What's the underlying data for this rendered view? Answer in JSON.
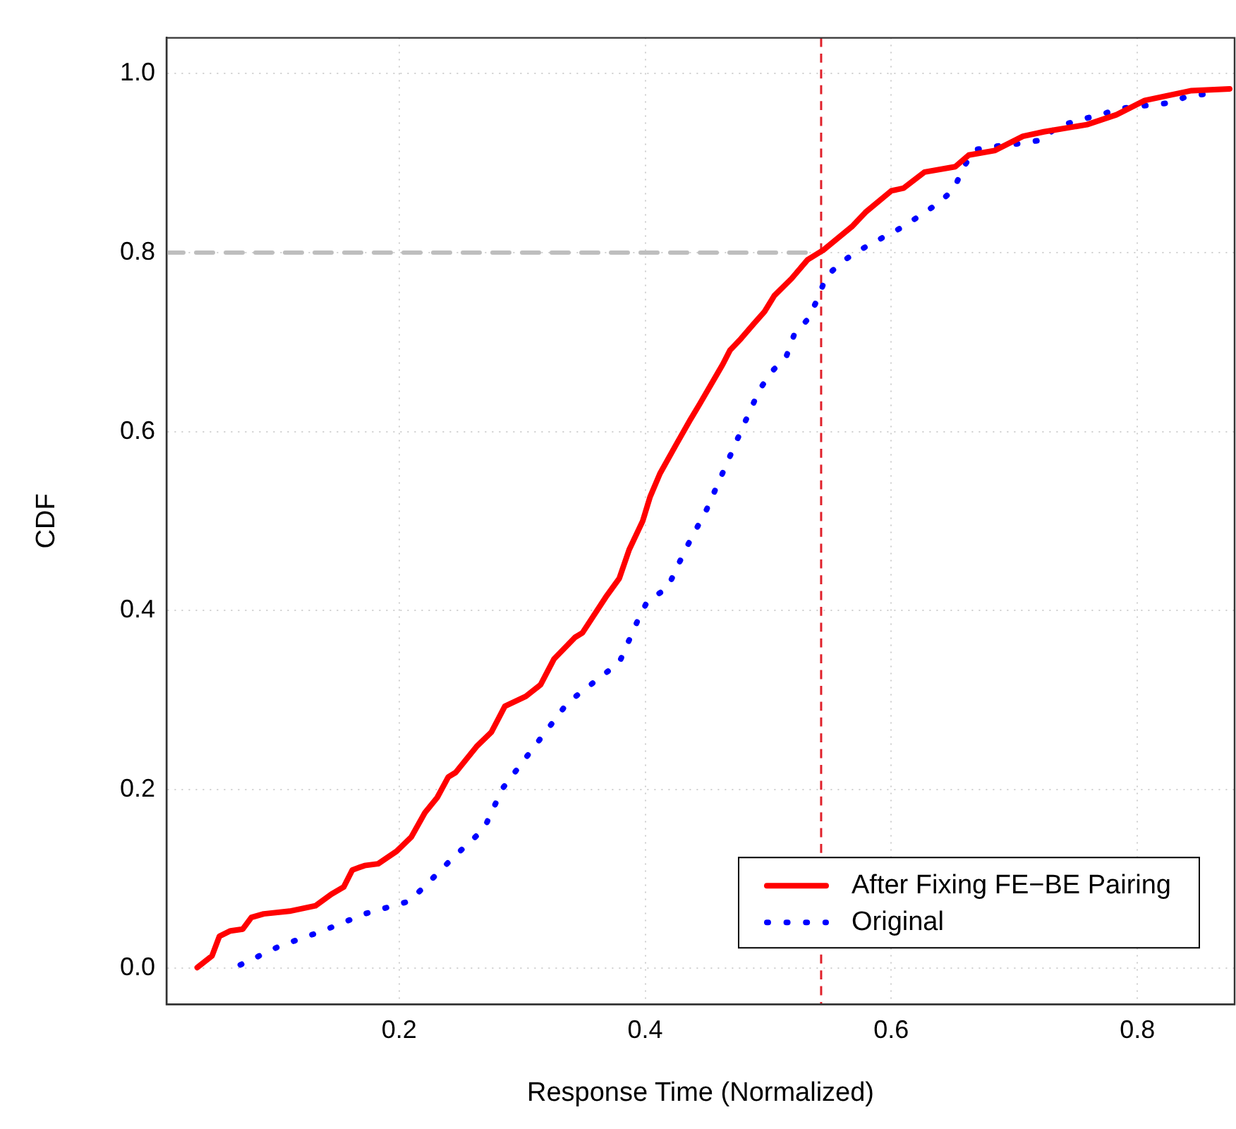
{
  "chart_data": {
    "type": "line",
    "xlabel": "Response Time (Normalized)",
    "ylabel": "CDF",
    "xlim": [
      0.011,
      0.879
    ],
    "ylim": [
      -0.04,
      1.04
    ],
    "xticks": [
      0.2,
      0.4,
      0.6,
      0.8
    ],
    "yticks": [
      {
        "value": 0,
        "label": "0.0"
      },
      0.2,
      0.4,
      0.6,
      0.8,
      {
        "value": 1,
        "label": "1.0"
      }
    ],
    "grid": true,
    "legend": "bottom right",
    "series": [
      {
        "name": "After Fixing FE−BE Pairing",
        "color": "#ff0000",
        "line_style": "solid",
        "x": [
          0.036,
          0.048,
          0.054,
          0.063,
          0.073,
          0.08,
          0.09,
          0.111,
          0.132,
          0.145,
          0.155,
          0.162,
          0.172,
          0.183,
          0.198,
          0.21,
          0.221,
          0.231,
          0.24,
          0.246,
          0.263,
          0.275,
          0.286,
          0.303,
          0.315,
          0.326,
          0.343,
          0.349,
          0.368,
          0.379,
          0.387,
          0.398,
          0.404,
          0.412,
          0.425,
          0.437,
          0.444,
          0.463,
          0.469,
          0.478,
          0.488,
          0.497,
          0.505,
          0.519,
          0.532,
          0.545,
          0.568,
          0.579,
          0.6,
          0.61,
          0.627,
          0.652,
          0.663,
          0.684,
          0.707,
          0.724,
          0.759,
          0.783,
          0.806,
          0.844,
          0.875
        ],
        "values": [
          0.001,
          0.014,
          0.036,
          0.042,
          0.044,
          0.057,
          0.061,
          0.064,
          0.07,
          0.083,
          0.091,
          0.11,
          0.115,
          0.117,
          0.131,
          0.147,
          0.174,
          0.191,
          0.214,
          0.219,
          0.248,
          0.264,
          0.293,
          0.304,
          0.317,
          0.346,
          0.37,
          0.375,
          0.415,
          0.436,
          0.468,
          0.5,
          0.527,
          0.553,
          0.585,
          0.614,
          0.63,
          0.675,
          0.691,
          0.704,
          0.72,
          0.734,
          0.752,
          0.771,
          0.792,
          0.803,
          0.829,
          0.845,
          0.869,
          0.872,
          0.89,
          0.896,
          0.909,
          0.914,
          0.93,
          0.935,
          0.943,
          0.954,
          0.97,
          0.981,
          0.983
        ]
      },
      {
        "name": "Original",
        "color": "#0000ff",
        "line_style": "dotted",
        "x": [
          0.071,
          0.103,
          0.138,
          0.172,
          0.208,
          0.221,
          0.244,
          0.269,
          0.284,
          0.305,
          0.326,
          0.337,
          0.379,
          0.394,
          0.402,
          0.418,
          0.433,
          0.45,
          0.464,
          0.478,
          0.493,
          0.503,
          0.515,
          0.521,
          0.533,
          0.541,
          0.547,
          0.56,
          0.576,
          0.592,
          0.607,
          0.623,
          0.638,
          0.651,
          0.658,
          0.668,
          0.686,
          0.705,
          0.723,
          0.734,
          0.752,
          0.77,
          0.786,
          0.805,
          0.824,
          0.842,
          0.861
        ],
        "values": [
          0.004,
          0.025,
          0.042,
          0.061,
          0.075,
          0.092,
          0.124,
          0.156,
          0.201,
          0.239,
          0.277,
          0.297,
          0.342,
          0.389,
          0.411,
          0.425,
          0.469,
          0.513,
          0.557,
          0.601,
          0.647,
          0.667,
          0.685,
          0.708,
          0.727,
          0.751,
          0.773,
          0.79,
          0.804,
          0.816,
          0.827,
          0.841,
          0.855,
          0.871,
          0.894,
          0.915,
          0.919,
          0.922,
          0.926,
          0.94,
          0.948,
          0.954,
          0.961,
          0.964,
          0.967,
          0.975,
          0.978
        ]
      },
      {
        "color": "#bebebe",
        "line_style": "dashed",
        "x": [
          0.011,
          0.543
        ],
        "values": [
          0.8,
          0.8
        ]
      }
    ],
    "ref_lines": [
      {
        "axis": "x",
        "value": 0.543,
        "color": "#e0202a",
        "line_style": "dashed"
      }
    ]
  }
}
